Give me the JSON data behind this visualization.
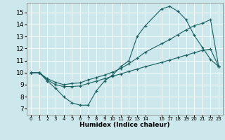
{
  "xlabel": "Humidex (Indice chaleur)",
  "bg_color": "#cde8ec",
  "grid_color": "#b8d8dc",
  "line_color": "#1a6060",
  "xlim": [
    -0.5,
    23.5
  ],
  "ylim": [
    6.5,
    15.8
  ],
  "yticks": [
    7,
    8,
    9,
    10,
    11,
    12,
    13,
    14,
    15
  ],
  "xtick_positions": [
    0,
    1,
    2,
    3,
    4,
    5,
    6,
    7,
    8,
    9,
    10,
    11,
    12,
    13,
    14,
    16,
    17,
    18,
    19,
    20,
    21,
    22,
    23
  ],
  "xtick_labels": [
    "0",
    "1",
    "2",
    "3",
    "4",
    "5",
    "6",
    "7",
    "8",
    "9",
    "10",
    "11",
    "12",
    "13",
    "14",
    "16",
    "17",
    "18",
    "19",
    "20",
    "21",
    "22",
    "23"
  ],
  "line1_x": [
    0,
    1,
    2,
    3,
    4,
    5,
    6,
    7,
    8,
    9,
    10,
    11,
    12,
    13,
    14,
    16,
    17,
    18,
    19,
    20,
    21,
    22,
    23
  ],
  "line1_y": [
    10.0,
    10.0,
    9.3,
    8.7,
    8.0,
    7.5,
    7.3,
    7.3,
    8.5,
    9.3,
    9.8,
    10.5,
    11.0,
    13.0,
    13.9,
    15.3,
    15.5,
    15.1,
    14.4,
    13.1,
    12.1,
    11.1,
    10.5
  ],
  "line2_x": [
    0,
    1,
    2,
    3,
    4,
    5,
    6,
    7,
    8,
    9,
    10,
    11,
    12,
    13,
    14,
    16,
    17,
    18,
    19,
    20,
    21,
    22,
    23
  ],
  "line2_y": [
    10.0,
    10.0,
    9.5,
    9.2,
    9.0,
    9.1,
    9.15,
    9.4,
    9.6,
    9.8,
    10.05,
    10.35,
    10.75,
    11.2,
    11.7,
    12.4,
    12.75,
    13.15,
    13.55,
    13.9,
    14.1,
    14.4,
    10.5
  ],
  "line3_x": [
    0,
    1,
    2,
    3,
    4,
    5,
    6,
    7,
    8,
    9,
    10,
    11,
    12,
    13,
    14,
    16,
    17,
    18,
    19,
    20,
    21,
    22,
    23
  ],
  "line3_y": [
    10.0,
    10.0,
    9.4,
    9.0,
    8.85,
    8.85,
    8.9,
    9.1,
    9.3,
    9.5,
    9.7,
    9.9,
    10.1,
    10.3,
    10.5,
    10.85,
    11.05,
    11.25,
    11.45,
    11.65,
    11.85,
    11.95,
    10.5
  ]
}
